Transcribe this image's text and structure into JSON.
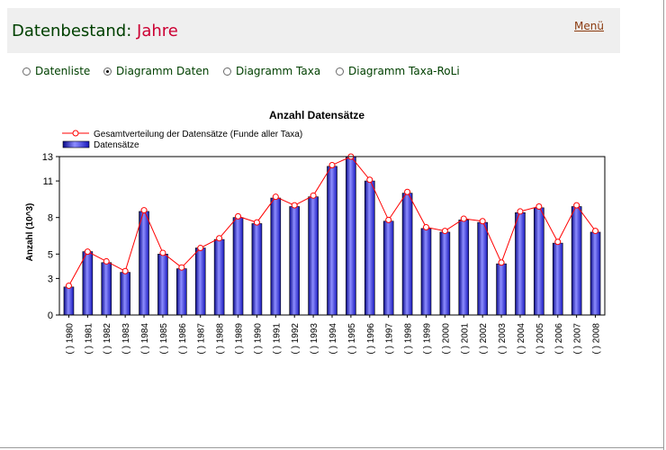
{
  "header": {
    "title_prefix": "Datenbestand:",
    "title_accent": "Jahre",
    "menu_label": "Menü"
  },
  "view_options": [
    {
      "label": "Datenliste",
      "checked": false
    },
    {
      "label": "Diagramm Daten",
      "checked": true
    },
    {
      "label": "Diagramm Taxa",
      "checked": false
    },
    {
      "label": "Diagramm Taxa-RoLi",
      "checked": false
    }
  ],
  "colors": {
    "title_green": "#004000",
    "title_accent": "#cc0033",
    "bar_fill": "#2222cc",
    "line": "#ff0000"
  },
  "chart_data": {
    "type": "bar",
    "title": "Anzahl Datensätze",
    "xlabel": "",
    "ylabel": "Anzahl (10^3)",
    "ylim": [
      0,
      13
    ],
    "yticks": [
      0,
      3,
      5,
      8,
      11,
      13
    ],
    "grid": false,
    "legend_position": "top-left",
    "categories": [
      "( ) 1980",
      "( ) 1981",
      "( ) 1982",
      "( ) 1983",
      "( ) 1984",
      "( ) 1985",
      "( ) 1986",
      "( ) 1987",
      "( ) 1988",
      "( ) 1989",
      "( ) 1990",
      "( ) 1991",
      "( ) 1992",
      "( ) 1993",
      "( ) 1994",
      "( ) 1995",
      "( ) 1996",
      "( ) 1997",
      "( ) 1998",
      "( ) 1999",
      "( ) 2000",
      "( ) 2001",
      "( ) 2002",
      "( ) 2003",
      "( ) 2004",
      "( ) 2005",
      "( ) 2006",
      "( ) 2007",
      "( ) 2008"
    ],
    "series": [
      {
        "name": "Datensätze",
        "kind": "bar",
        "values": [
          2.3,
          5.2,
          4.3,
          3.5,
          8.5,
          5.0,
          3.8,
          5.5,
          6.2,
          8.0,
          7.5,
          9.6,
          8.9,
          9.7,
          12.2,
          13.0,
          11.0,
          7.7,
          10.0,
          7.1,
          6.8,
          7.8,
          7.6,
          4.2,
          8.4,
          8.8,
          5.9,
          8.9,
          6.8
        ]
      },
      {
        "name": "Gesamtverteilung der Datensätze (Funde aller Taxa)",
        "kind": "line",
        "values": [
          2.4,
          5.2,
          4.4,
          3.6,
          8.6,
          5.1,
          3.9,
          5.5,
          6.3,
          8.1,
          7.6,
          9.7,
          9.0,
          9.8,
          12.3,
          13.0,
          11.1,
          7.8,
          10.1,
          7.2,
          6.9,
          7.9,
          7.7,
          4.3,
          8.5,
          8.9,
          6.0,
          9.0,
          6.9
        ]
      }
    ]
  }
}
